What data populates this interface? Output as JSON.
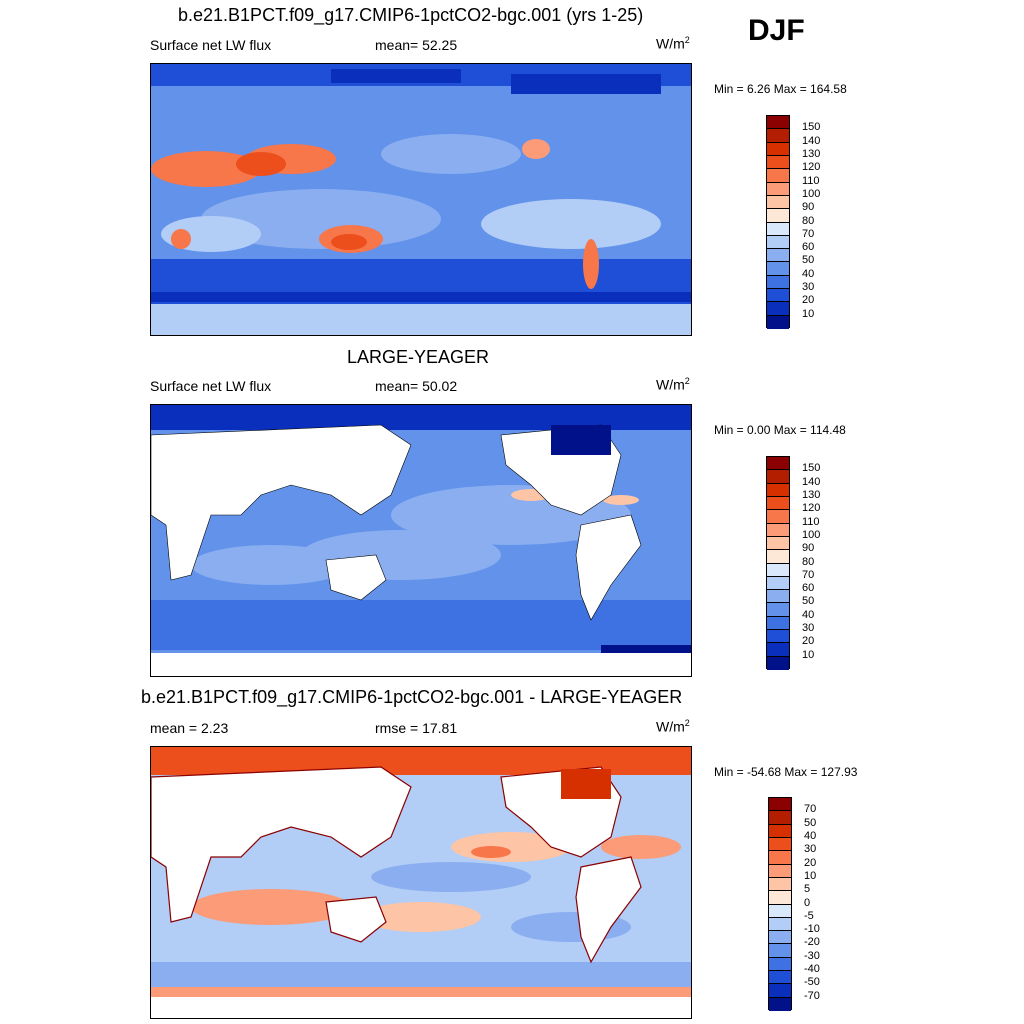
{
  "season": "DJF",
  "panels": [
    {
      "title": "b.e21.B1PCT.f09_g17.CMIP6-1pctCO2-bgc.001 (yrs 1-25)",
      "left": "Surface net LW flux",
      "center": "mean=  52.25",
      "units_base": "W/m",
      "units_exp": "2",
      "minmax": "Min =   6.26 Max = 164.58",
      "cbar": {
        "labels": [
          "150",
          "140",
          "130",
          "120",
          "110",
          "100",
          "90",
          "80",
          "70",
          "60",
          "50",
          "40",
          "30",
          "20",
          "10"
        ],
        "colors": [
          "#8b0000",
          "#b41e00",
          "#d73000",
          "#ec4f1c",
          "#f7764a",
          "#fb9b78",
          "#fdc4a6",
          "#fde7d6",
          "#d9e8fb",
          "#b2cdf6",
          "#8aaef0",
          "#6292ea",
          "#3e72e3",
          "#1f4fd6",
          "#0b2fbd",
          "#00118a"
        ]
      }
    },
    {
      "title": "LARGE-YEAGER",
      "left": "Surface net LW flux",
      "center": "mean=  50.02",
      "units_base": "W/m",
      "units_exp": "2",
      "minmax": "Min =   0.00 Max = 114.48",
      "cbar": {
        "labels": [
          "150",
          "140",
          "130",
          "120",
          "110",
          "100",
          "90",
          "80",
          "70",
          "60",
          "50",
          "40",
          "30",
          "20",
          "10"
        ],
        "colors": [
          "#8b0000",
          "#b41e00",
          "#d73000",
          "#ec4f1c",
          "#f7764a",
          "#fb9b78",
          "#fdc4a6",
          "#fde7d6",
          "#d9e8fb",
          "#b2cdf6",
          "#8aaef0",
          "#6292ea",
          "#3e72e3",
          "#1f4fd6",
          "#0b2fbd",
          "#00118a"
        ]
      }
    },
    {
      "title": "b.e21.B1PCT.f09_g17.CMIP6-1pctCO2-bgc.001 - LARGE-YEAGER",
      "left": "mean =   2.23",
      "center": "rmse =  17.81",
      "units_base": "W/m",
      "units_exp": "2",
      "minmax": "Min = -54.68 Max = 127.93",
      "cbar": {
        "labels": [
          "70",
          "50",
          "40",
          "30",
          "20",
          "10",
          "5",
          "0",
          "-5",
          "-10",
          "-20",
          "-30",
          "-40",
          "-50",
          "-70"
        ],
        "colors": [
          "#8b0000",
          "#b41e00",
          "#d73000",
          "#ec4f1c",
          "#f7764a",
          "#fb9b78",
          "#fdc4a6",
          "#fde7d6",
          "#d9e8fb",
          "#b2cdf6",
          "#8aaef0",
          "#6292ea",
          "#3e72e3",
          "#1f4fd6",
          "#0b2fbd",
          "#00118a"
        ]
      }
    }
  ]
}
